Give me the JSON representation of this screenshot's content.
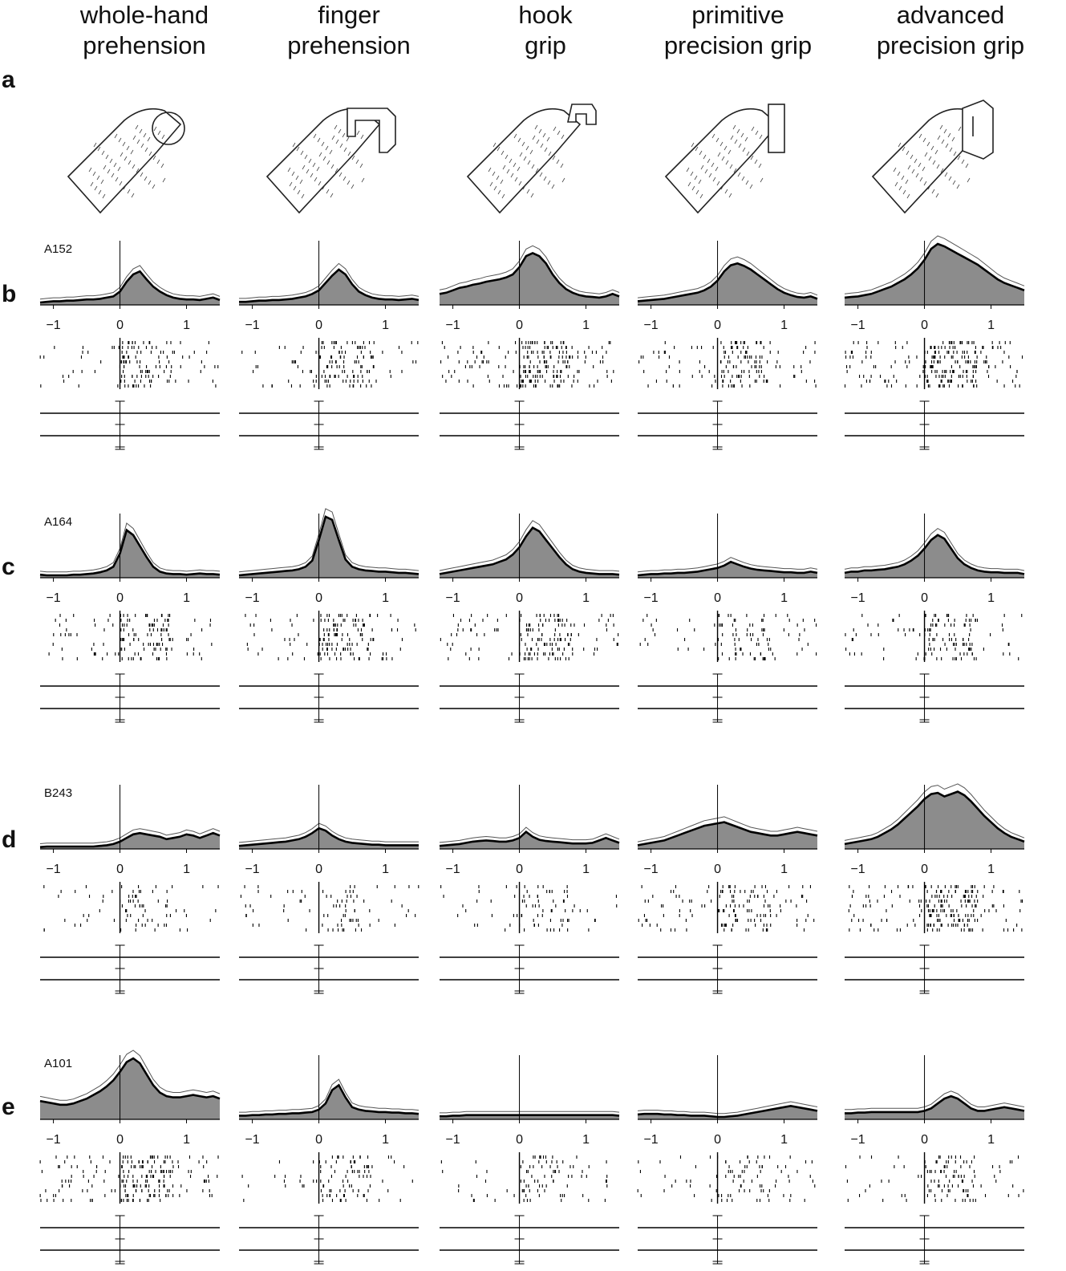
{
  "columns": [
    {
      "title": "whole-hand\nprehension",
      "drawing": "hand-grasping-sphere-drawing"
    },
    {
      "title": "finger\nprehension",
      "drawing": "hand-grasping-ring-drawing"
    },
    {
      "title": "hook\ngrip",
      "drawing": "hand-hooking-handle-drawing"
    },
    {
      "title": "primitive\nprecision grip",
      "drawing": "hand-pinching-plate-drawing"
    },
    {
      "title": "advanced\nprecision grip",
      "drawing": "hand-pinching-slot-drawing"
    }
  ],
  "row_letters": [
    "a",
    "b",
    "c",
    "d",
    "e"
  ],
  "chart_data": {
    "type": "area",
    "x_unit_ticks": [
      "-1",
      "0",
      "1"
    ],
    "xlim": [
      -1.2,
      1.5
    ],
    "grid": false,
    "legend": "none",
    "colors": {
      "fill": "#8c8c8c",
      "mean_line": "#000000",
      "error_line": "#555555",
      "axis": "#000000"
    },
    "x": [
      -1.2,
      -1.1,
      -1.0,
      -0.9,
      -0.8,
      -0.7,
      -0.6,
      -0.5,
      -0.4,
      -0.3,
      -0.2,
      -0.1,
      0.0,
      0.1,
      0.2,
      0.3,
      0.4,
      0.5,
      0.6,
      0.7,
      0.8,
      0.9,
      1.0,
      1.1,
      1.2,
      1.3,
      1.4,
      1.5
    ],
    "rows": [
      {
        "neuron": "A152",
        "panels": [
          {
            "grip": "whole-hand prehension",
            "values": [
              0.04,
              0.05,
              0.06,
              0.06,
              0.07,
              0.07,
              0.08,
              0.09,
              0.09,
              0.1,
              0.12,
              0.14,
              0.22,
              0.38,
              0.5,
              0.55,
              0.42,
              0.3,
              0.22,
              0.16,
              0.12,
              0.1,
              0.09,
              0.09,
              0.08,
              0.1,
              0.12,
              0.08
            ],
            "raster_density": 0.5
          },
          {
            "grip": "finger prehension",
            "values": [
              0.05,
              0.05,
              0.06,
              0.07,
              0.07,
              0.08,
              0.08,
              0.09,
              0.1,
              0.12,
              0.14,
              0.18,
              0.24,
              0.36,
              0.48,
              0.58,
              0.5,
              0.34,
              0.22,
              0.16,
              0.12,
              0.1,
              0.09,
              0.09,
              0.08,
              0.09,
              0.1,
              0.08
            ],
            "raster_density": 0.55
          },
          {
            "grip": "hook grip",
            "values": [
              0.18,
              0.2,
              0.24,
              0.28,
              0.3,
              0.33,
              0.35,
              0.38,
              0.4,
              0.42,
              0.45,
              0.5,
              0.62,
              0.8,
              0.85,
              0.8,
              0.68,
              0.5,
              0.36,
              0.26,
              0.2,
              0.16,
              0.14,
              0.13,
              0.12,
              0.14,
              0.18,
              0.14
            ],
            "raster_density": 0.85
          },
          {
            "grip": "primitive precision grip",
            "values": [
              0.06,
              0.07,
              0.08,
              0.09,
              0.1,
              0.12,
              0.14,
              0.16,
              0.18,
              0.2,
              0.24,
              0.3,
              0.4,
              0.55,
              0.65,
              0.68,
              0.64,
              0.58,
              0.5,
              0.42,
              0.34,
              0.26,
              0.2,
              0.16,
              0.13,
              0.12,
              0.14,
              0.1
            ],
            "raster_density": 0.6
          },
          {
            "grip": "advanced precision grip",
            "values": [
              0.12,
              0.13,
              0.14,
              0.16,
              0.18,
              0.22,
              0.26,
              0.3,
              0.36,
              0.42,
              0.5,
              0.6,
              0.74,
              0.92,
              1.0,
              0.96,
              0.9,
              0.84,
              0.78,
              0.72,
              0.66,
              0.58,
              0.5,
              0.42,
              0.36,
              0.32,
              0.28,
              0.24
            ],
            "raster_density": 0.9
          }
        ]
      },
      {
        "neuron": "A164",
        "panels": [
          {
            "grip": "whole-hand prehension",
            "values": [
              0.05,
              0.04,
              0.04,
              0.04,
              0.04,
              0.05,
              0.05,
              0.06,
              0.07,
              0.09,
              0.12,
              0.18,
              0.4,
              0.78,
              0.7,
              0.52,
              0.34,
              0.18,
              0.1,
              0.07,
              0.06,
              0.06,
              0.05,
              0.06,
              0.07,
              0.06,
              0.06,
              0.05
            ],
            "raster_density": 0.55
          },
          {
            "grip": "finger prehension",
            "values": [
              0.04,
              0.05,
              0.06,
              0.07,
              0.08,
              0.09,
              0.1,
              0.11,
              0.12,
              0.14,
              0.18,
              0.28,
              0.62,
              1.0,
              0.95,
              0.62,
              0.3,
              0.18,
              0.14,
              0.12,
              0.11,
              0.1,
              0.1,
              0.09,
              0.08,
              0.08,
              0.07,
              0.06
            ],
            "raster_density": 0.6
          },
          {
            "grip": "hook grip",
            "values": [
              0.06,
              0.08,
              0.1,
              0.12,
              0.14,
              0.16,
              0.18,
              0.2,
              0.22,
              0.26,
              0.3,
              0.38,
              0.5,
              0.68,
              0.82,
              0.76,
              0.62,
              0.48,
              0.34,
              0.22,
              0.14,
              0.1,
              0.08,
              0.07,
              0.06,
              0.06,
              0.06,
              0.05
            ],
            "raster_density": 0.65
          },
          {
            "grip": "primitive precision grip",
            "values": [
              0.04,
              0.05,
              0.06,
              0.06,
              0.07,
              0.07,
              0.08,
              0.08,
              0.09,
              0.1,
              0.12,
              0.14,
              0.16,
              0.2,
              0.26,
              0.22,
              0.18,
              0.15,
              0.13,
              0.12,
              0.11,
              0.1,
              0.09,
              0.09,
              0.08,
              0.08,
              0.1,
              0.08
            ],
            "raster_density": 0.4
          },
          {
            "grip": "advanced precision grip",
            "values": [
              0.08,
              0.1,
              0.1,
              0.12,
              0.12,
              0.13,
              0.14,
              0.16,
              0.18,
              0.22,
              0.28,
              0.36,
              0.48,
              0.62,
              0.7,
              0.64,
              0.48,
              0.32,
              0.22,
              0.16,
              0.12,
              0.1,
              0.09,
              0.09,
              0.08,
              0.08,
              0.08,
              0.06
            ],
            "raster_density": 0.5
          }
        ]
      },
      {
        "neuron": "B243",
        "panels": [
          {
            "grip": "whole-hand prehension",
            "values": [
              0.03,
              0.04,
              0.04,
              0.04,
              0.04,
              0.04,
              0.04,
              0.04,
              0.04,
              0.05,
              0.06,
              0.08,
              0.12,
              0.18,
              0.24,
              0.26,
              0.24,
              0.22,
              0.2,
              0.16,
              0.18,
              0.2,
              0.24,
              0.22,
              0.18,
              0.22,
              0.26,
              0.22
            ],
            "raster_density": 0.3
          },
          {
            "grip": "finger prehension",
            "values": [
              0.05,
              0.06,
              0.07,
              0.08,
              0.09,
              0.1,
              0.11,
              0.12,
              0.14,
              0.16,
              0.2,
              0.26,
              0.34,
              0.3,
              0.22,
              0.16,
              0.12,
              0.1,
              0.09,
              0.08,
              0.07,
              0.07,
              0.06,
              0.06,
              0.06,
              0.06,
              0.06,
              0.06
            ],
            "raster_density": 0.3
          },
          {
            "grip": "hook grip",
            "values": [
              0.05,
              0.06,
              0.07,
              0.08,
              0.1,
              0.12,
              0.13,
              0.14,
              0.13,
              0.12,
              0.12,
              0.14,
              0.18,
              0.28,
              0.2,
              0.15,
              0.13,
              0.12,
              0.11,
              0.1,
              0.09,
              0.09,
              0.09,
              0.1,
              0.14,
              0.18,
              0.14,
              0.1
            ],
            "raster_density": 0.3
          },
          {
            "grip": "primitive precision grip",
            "values": [
              0.06,
              0.08,
              0.1,
              0.12,
              0.14,
              0.18,
              0.22,
              0.26,
              0.3,
              0.34,
              0.38,
              0.4,
              0.42,
              0.44,
              0.4,
              0.36,
              0.32,
              0.28,
              0.26,
              0.24,
              0.22,
              0.22,
              0.24,
              0.26,
              0.28,
              0.26,
              0.24,
              0.22
            ],
            "raster_density": 0.55
          },
          {
            "grip": "advanced precision grip",
            "values": [
              0.08,
              0.1,
              0.12,
              0.14,
              0.16,
              0.2,
              0.26,
              0.32,
              0.4,
              0.5,
              0.6,
              0.7,
              0.82,
              0.9,
              0.92,
              0.86,
              0.9,
              0.94,
              0.88,
              0.78,
              0.66,
              0.54,
              0.44,
              0.34,
              0.26,
              0.2,
              0.16,
              0.12
            ],
            "raster_density": 0.85
          }
        ]
      },
      {
        "neuron": "A101",
        "panels": [
          {
            "grip": "whole-hand prehension",
            "values": [
              0.3,
              0.28,
              0.26,
              0.24,
              0.24,
              0.26,
              0.3,
              0.34,
              0.4,
              0.46,
              0.54,
              0.64,
              0.78,
              0.94,
              1.0,
              0.92,
              0.74,
              0.56,
              0.44,
              0.38,
              0.36,
              0.36,
              0.38,
              0.4,
              0.38,
              0.36,
              0.38,
              0.34
            ],
            "raster_density": 0.8
          },
          {
            "grip": "finger prehension",
            "values": [
              0.06,
              0.06,
              0.07,
              0.07,
              0.08,
              0.08,
              0.09,
              0.09,
              0.1,
              0.1,
              0.11,
              0.12,
              0.16,
              0.26,
              0.48,
              0.56,
              0.36,
              0.2,
              0.16,
              0.14,
              0.13,
              0.12,
              0.12,
              0.11,
              0.11,
              0.1,
              0.1,
              0.09
            ],
            "raster_density": 0.4
          },
          {
            "grip": "hook grip",
            "values": [
              0.05,
              0.05,
              0.06,
              0.06,
              0.07,
              0.07,
              0.07,
              0.07,
              0.07,
              0.07,
              0.07,
              0.07,
              0.07,
              0.07,
              0.07,
              0.07,
              0.07,
              0.07,
              0.07,
              0.07,
              0.07,
              0.07,
              0.07,
              0.07,
              0.07,
              0.07,
              0.07,
              0.06
            ],
            "raster_density": 0.35
          },
          {
            "grip": "primitive precision grip",
            "values": [
              0.08,
              0.09,
              0.09,
              0.09,
              0.08,
              0.08,
              0.07,
              0.07,
              0.06,
              0.06,
              0.06,
              0.05,
              0.04,
              0.04,
              0.05,
              0.06,
              0.08,
              0.1,
              0.12,
              0.14,
              0.16,
              0.18,
              0.2,
              0.22,
              0.2,
              0.18,
              0.16,
              0.14
            ],
            "raster_density": 0.35
          },
          {
            "grip": "advanced precision grip",
            "values": [
              0.1,
              0.1,
              0.11,
              0.11,
              0.12,
              0.12,
              0.12,
              0.12,
              0.12,
              0.12,
              0.12,
              0.12,
              0.14,
              0.18,
              0.26,
              0.34,
              0.38,
              0.34,
              0.26,
              0.18,
              0.14,
              0.14,
              0.16,
              0.18,
              0.2,
              0.18,
              0.16,
              0.14
            ],
            "raster_density": 0.45
          }
        ]
      }
    ]
  }
}
